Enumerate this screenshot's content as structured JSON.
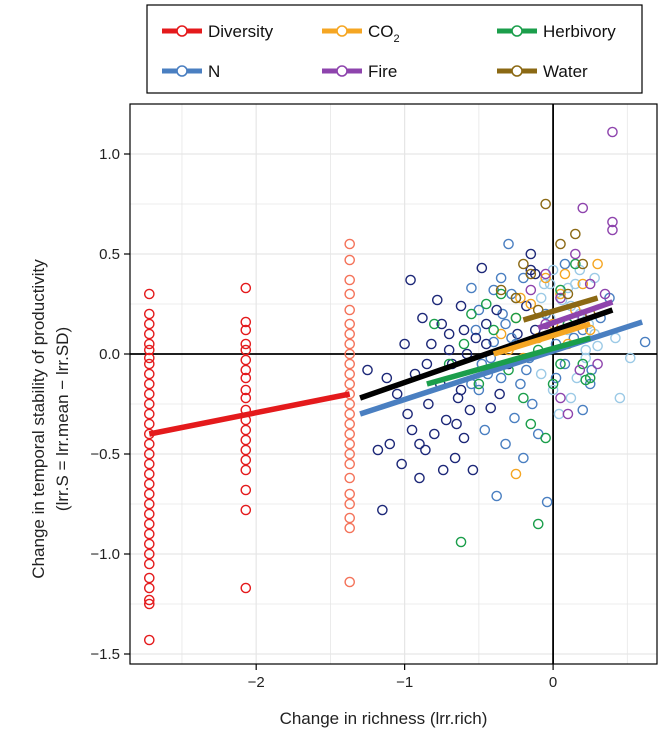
{
  "chart_data": {
    "type": "scatter",
    "xlabel": "Change in richness (lrr.rich)",
    "ylabel": [
      "Change in temporal stability of productivity",
      "(lrr.S = lrr.mean − lrr.SD)"
    ],
    "xlim": [
      -2.85,
      0.7
    ],
    "ylim": [
      -1.55,
      1.25
    ],
    "xticks": [
      -2,
      -1,
      0
    ],
    "xtick_labels": [
      "−2",
      "−1",
      "0"
    ],
    "yticks": [
      -1.5,
      -1.0,
      -0.5,
      0.0,
      0.5,
      1.0
    ],
    "ytick_labels": [
      "−1.5",
      "−1.0",
      "−0.5",
      "0.0",
      "0.5",
      "1.0"
    ],
    "grid": true,
    "legend_position": "top",
    "reference_lines": {
      "x": 0,
      "y": 0
    },
    "legend": [
      {
        "key": "diversity",
        "label": "Diversity"
      },
      {
        "key": "co2",
        "label": "CO",
        "sub": "2"
      },
      {
        "key": "herbivory",
        "label": "Herbivory"
      },
      {
        "key": "n",
        "label": "N"
      },
      {
        "key": "fire",
        "label": "Fire"
      },
      {
        "key": "water",
        "label": "Water"
      }
    ],
    "colors": {
      "diversity": "#e41a1c",
      "diversity_light": "#f4735a",
      "co2": "#f5a623",
      "herbivory": "#1b9e4b",
      "n": "#4a7fc1",
      "n_dark": "#1d2878",
      "n_light": "#9ccae6",
      "fire": "#8e44ad",
      "water": "#8b6914",
      "overall": "#000000"
    },
    "fit_lines": [
      {
        "key": "diversity",
        "x": [
          -2.72,
          -1.37
        ],
        "y": [
          -0.4,
          -0.2
        ]
      },
      {
        "key": "overall",
        "x": [
          -1.3,
          0.4
        ],
        "y": [
          -0.22,
          0.22
        ]
      },
      {
        "key": "n",
        "x": [
          -1.3,
          0.6
        ],
        "y": [
          -0.3,
          0.16
        ]
      },
      {
        "key": "co2",
        "x": [
          -0.4,
          0.25
        ],
        "y": [
          0.0,
          0.15
        ]
      },
      {
        "key": "herbivory",
        "x": [
          -0.85,
          0.25
        ],
        "y": [
          -0.15,
          0.08
        ]
      },
      {
        "key": "fire",
        "x": [
          -0.1,
          0.4
        ],
        "y": [
          0.13,
          0.26
        ]
      },
      {
        "key": "water",
        "x": [
          -0.2,
          0.3
        ],
        "y": [
          0.17,
          0.28
        ]
      }
    ],
    "series": [
      {
        "key": "diversity",
        "points": [
          [
            -2.72,
            0.3
          ],
          [
            -2.72,
            0.2
          ],
          [
            -2.72,
            0.15
          ],
          [
            -2.72,
            0.1
          ],
          [
            -2.72,
            0.05
          ],
          [
            -2.72,
            0.02
          ],
          [
            -2.72,
            -0.02
          ],
          [
            -2.72,
            -0.05
          ],
          [
            -2.72,
            -0.1
          ],
          [
            -2.72,
            -0.15
          ],
          [
            -2.72,
            -0.2
          ],
          [
            -2.72,
            -0.25
          ],
          [
            -2.72,
            -0.3
          ],
          [
            -2.72,
            -0.35
          ],
          [
            -2.72,
            -0.4
          ],
          [
            -2.72,
            -0.45
          ],
          [
            -2.72,
            -0.5
          ],
          [
            -2.72,
            -0.55
          ],
          [
            -2.72,
            -0.6
          ],
          [
            -2.72,
            -0.65
          ],
          [
            -2.72,
            -0.7
          ],
          [
            -2.72,
            -0.75
          ],
          [
            -2.72,
            -0.8
          ],
          [
            -2.72,
            -0.85
          ],
          [
            -2.72,
            -0.9
          ],
          [
            -2.72,
            -0.95
          ],
          [
            -2.72,
            -1.0
          ],
          [
            -2.72,
            -1.05
          ],
          [
            -2.72,
            -1.12
          ],
          [
            -2.72,
            -1.17
          ],
          [
            -2.72,
            -1.23
          ],
          [
            -2.72,
            -1.25
          ],
          [
            -2.72,
            -1.43
          ],
          [
            -2.07,
            0.33
          ],
          [
            -2.07,
            0.16
          ],
          [
            -2.07,
            0.12
          ],
          [
            -2.07,
            0.05
          ],
          [
            -2.07,
            0.02
          ],
          [
            -2.07,
            -0.03
          ],
          [
            -2.07,
            -0.08
          ],
          [
            -2.07,
            -0.12
          ],
          [
            -2.07,
            -0.18
          ],
          [
            -2.07,
            -0.22
          ],
          [
            -2.07,
            -0.28
          ],
          [
            -2.07,
            -0.33
          ],
          [
            -2.07,
            -0.38
          ],
          [
            -2.07,
            -0.43
          ],
          [
            -2.07,
            -0.48
          ],
          [
            -2.07,
            -0.53
          ],
          [
            -2.07,
            -0.58
          ],
          [
            -2.07,
            -0.68
          ],
          [
            -2.07,
            -0.78
          ],
          [
            -2.07,
            -1.17
          ],
          [
            -1.37,
            0.55
          ],
          [
            -1.37,
            0.47
          ],
          [
            -1.37,
            0.37
          ],
          [
            -1.37,
            0.3
          ],
          [
            -1.37,
            0.22
          ],
          [
            -1.37,
            0.15
          ],
          [
            -1.37,
            0.1
          ],
          [
            -1.37,
            0.05
          ],
          [
            -1.37,
            0.0
          ],
          [
            -1.37,
            -0.05
          ],
          [
            -1.37,
            -0.1
          ],
          [
            -1.37,
            -0.15
          ],
          [
            -1.37,
            -0.2
          ],
          [
            -1.37,
            -0.25
          ],
          [
            -1.37,
            -0.3
          ],
          [
            -1.37,
            -0.35
          ],
          [
            -1.37,
            -0.4
          ],
          [
            -1.37,
            -0.45
          ],
          [
            -1.37,
            -0.5
          ],
          [
            -1.37,
            -0.55
          ],
          [
            -1.37,
            -0.62
          ],
          [
            -1.37,
            -0.7
          ],
          [
            -1.37,
            -0.75
          ],
          [
            -1.37,
            -0.82
          ],
          [
            -1.37,
            -0.87
          ],
          [
            -1.37,
            -1.14
          ]
        ]
      },
      {
        "key": "n",
        "points": [
          [
            -1.25,
            -0.08
          ],
          [
            -1.18,
            -0.48
          ],
          [
            -1.15,
            -0.78
          ],
          [
            -1.12,
            -0.12
          ],
          [
            -1.1,
            -0.45
          ],
          [
            -1.05,
            -0.2
          ],
          [
            -1.02,
            -0.55
          ],
          [
            -1.0,
            0.05
          ],
          [
            -0.98,
            -0.3
          ],
          [
            -0.96,
            0.37
          ],
          [
            -0.95,
            -0.38
          ],
          [
            -0.93,
            -0.1
          ],
          [
            -0.9,
            -0.62
          ],
          [
            -0.88,
            0.18
          ],
          [
            -0.86,
            -0.48
          ],
          [
            -0.84,
            -0.25
          ],
          [
            -0.82,
            0.05
          ],
          [
            -0.8,
            -0.4
          ],
          [
            -0.78,
            0.27
          ],
          [
            -0.76,
            -0.15
          ],
          [
            -0.74,
            -0.58
          ],
          [
            -0.72,
            -0.33
          ],
          [
            -0.7,
            0.1
          ],
          [
            -0.68,
            -0.05
          ],
          [
            -0.66,
            -0.52
          ],
          [
            -0.64,
            -0.22
          ],
          [
            -0.62,
            0.24
          ],
          [
            -0.6,
            -0.42
          ],
          [
            -0.58,
            0.0
          ],
          [
            -0.56,
            -0.28
          ],
          [
            -0.54,
            -0.58
          ],
          [
            -0.52,
            0.12
          ],
          [
            -0.5,
            -0.18
          ],
          [
            -0.48,
            0.43
          ],
          [
            -0.46,
            -0.38
          ],
          [
            -0.44,
            -0.1
          ],
          [
            -0.42,
            -0.27
          ],
          [
            -0.4,
            0.06
          ],
          [
            -0.38,
            -0.71
          ],
          [
            -0.36,
            -0.2
          ],
          [
            -0.34,
            0.2
          ],
          [
            -0.32,
            -0.45
          ],
          [
            -0.3,
            -0.05
          ],
          [
            -0.28,
            0.3
          ],
          [
            -0.26,
            -0.32
          ],
          [
            -0.24,
            0.1
          ],
          [
            -0.22,
            -0.15
          ],
          [
            -0.2,
            -0.52
          ],
          [
            -0.18,
            0.24
          ],
          [
            -0.16,
            -0.02
          ],
          [
            -0.14,
            -0.25
          ],
          [
            -0.12,
            0.12
          ],
          [
            -0.1,
            -0.4
          ],
          [
            -0.08,
            -0.1
          ],
          [
            -0.06,
            0.35
          ],
          [
            -0.04,
            -0.74
          ],
          [
            -0.02,
            0.18
          ],
          [
            0.0,
            -0.18
          ],
          [
            0.02,
            0.05
          ],
          [
            0.04,
            -0.3
          ],
          [
            0.06,
            0.27
          ],
          [
            0.08,
            -0.05
          ],
          [
            0.1,
            0.12
          ],
          [
            0.12,
            -0.22
          ],
          [
            0.14,
            0.08
          ],
          [
            0.16,
            -0.12
          ],
          [
            0.18,
            0.2
          ],
          [
            0.2,
            -0.28
          ],
          [
            0.22,
            0.02
          ],
          [
            0.24,
            0.15
          ],
          [
            0.26,
            -0.08
          ],
          [
            0.28,
            0.1
          ],
          [
            0.3,
            0.04
          ],
          [
            -0.9,
            -0.45
          ],
          [
            -0.85,
            -0.05
          ],
          [
            -0.75,
            0.15
          ],
          [
            -0.65,
            -0.35
          ],
          [
            -0.55,
            0.33
          ],
          [
            -0.45,
            0.15
          ],
          [
            -0.35,
            -0.12
          ],
          [
            -0.25,
            0.05
          ],
          [
            -0.15,
            0.42
          ],
          [
            -0.05,
            0.2
          ],
          [
            0.05,
            0.3
          ],
          [
            0.15,
            0.35
          ],
          [
            0.25,
            -0.15
          ],
          [
            -0.3,
            0.55
          ],
          [
            -0.15,
            0.5
          ],
          [
            -0.2,
            0.38
          ],
          [
            0.0,
            0.42
          ],
          [
            0.1,
            0.33
          ],
          [
            -0.5,
            0.22
          ],
          [
            -0.4,
            0.32
          ],
          [
            -0.7,
            0.02
          ],
          [
            -0.6,
            0.12
          ],
          [
            -0.48,
            -0.05
          ],
          [
            -0.38,
            0.22
          ],
          [
            -0.28,
            0.08
          ],
          [
            -0.18,
            -0.08
          ],
          [
            -0.08,
            0.28
          ],
          [
            0.02,
            -0.12
          ],
          [
            0.12,
            0.24
          ],
          [
            0.22,
            -0.02
          ],
          [
            0.32,
            0.18
          ],
          [
            0.42,
            0.08
          ],
          [
            0.52,
            -0.02
          ],
          [
            0.62,
            0.06
          ],
          [
            -0.55,
            -0.15
          ],
          [
            -0.45,
            0.05
          ],
          [
            -0.35,
            0.38
          ],
          [
            -0.25,
            0.28
          ],
          [
            -0.12,
            0.4
          ],
          [
            0.08,
            0.45
          ],
          [
            0.18,
            0.42
          ],
          [
            0.28,
            0.38
          ],
          [
            0.38,
            0.28
          ],
          [
            0.45,
            -0.22
          ],
          [
            -0.02,
            0.35
          ],
          [
            0.2,
            0.12
          ],
          [
            -0.62,
            -0.18
          ],
          [
            -0.52,
            0.08
          ],
          [
            -0.42,
            -0.02
          ],
          [
            -0.32,
            0.15
          ]
        ]
      },
      {
        "key": "co2",
        "points": [
          [
            -0.35,
            0.1
          ],
          [
            -0.3,
            0.02
          ],
          [
            -0.25,
            0.18
          ],
          [
            -0.2,
            -0.02
          ],
          [
            -0.15,
            0.25
          ],
          [
            -0.1,
            0.08
          ],
          [
            -0.05,
            0.38
          ],
          [
            0.0,
            0.15
          ],
          [
            0.05,
            0.3
          ],
          [
            0.1,
            0.05
          ],
          [
            0.15,
            0.22
          ],
          [
            0.2,
            0.35
          ],
          [
            0.25,
            0.12
          ],
          [
            -0.22,
            0.28
          ],
          [
            0.08,
            0.4
          ],
          [
            -0.25,
            -0.6
          ],
          [
            0.3,
            0.45
          ],
          [
            0.18,
            0.15
          ]
        ]
      },
      {
        "key": "herbivory",
        "points": [
          [
            -0.8,
            0.15
          ],
          [
            -0.7,
            -0.05
          ],
          [
            -0.6,
            0.05
          ],
          [
            -0.5,
            -0.15
          ],
          [
            -0.45,
            0.25
          ],
          [
            -0.35,
            0.3
          ],
          [
            -0.3,
            -0.08
          ],
          [
            -0.2,
            -0.22
          ],
          [
            -0.1,
            0.02
          ],
          [
            0.0,
            -0.15
          ],
          [
            0.05,
            0.32
          ],
          [
            0.1,
            0.15
          ],
          [
            0.2,
            -0.05
          ],
          [
            0.25,
            -0.12
          ],
          [
            -0.05,
            -0.42
          ],
          [
            -0.15,
            -0.35
          ],
          [
            -0.62,
            -0.94
          ],
          [
            -0.1,
            -0.85
          ],
          [
            0.22,
            -0.13
          ],
          [
            -0.4,
            0.12
          ],
          [
            0.15,
            0.45
          ],
          [
            -0.25,
            0.18
          ],
          [
            0.05,
            -0.05
          ],
          [
            -0.55,
            0.2
          ]
        ]
      },
      {
        "key": "fire",
        "points": [
          [
            0.4,
            1.11
          ],
          [
            0.4,
            0.66
          ],
          [
            0.4,
            0.62
          ],
          [
            0.2,
            0.73
          ],
          [
            -0.15,
            0.32
          ],
          [
            -0.05,
            0.4
          ],
          [
            0.05,
            0.28
          ],
          [
            0.1,
            -0.3
          ],
          [
            0.18,
            -0.08
          ],
          [
            0.2,
            0.18
          ],
          [
            0.25,
            0.35
          ],
          [
            0.3,
            -0.05
          ],
          [
            -0.05,
            0.15
          ],
          [
            0.15,
            0.5
          ],
          [
            0.05,
            -0.22
          ],
          [
            0.35,
            0.3
          ]
        ]
      },
      {
        "key": "water",
        "points": [
          [
            -0.05,
            0.75
          ],
          [
            0.05,
            0.55
          ],
          [
            0.2,
            0.45
          ],
          [
            -0.15,
            0.4
          ],
          [
            -0.25,
            0.28
          ],
          [
            -0.1,
            0.22
          ],
          [
            0.1,
            0.3
          ],
          [
            0.25,
            0.2
          ],
          [
            -0.35,
            0.32
          ],
          [
            -0.2,
            0.45
          ],
          [
            0.15,
            0.6
          ]
        ]
      }
    ]
  }
}
